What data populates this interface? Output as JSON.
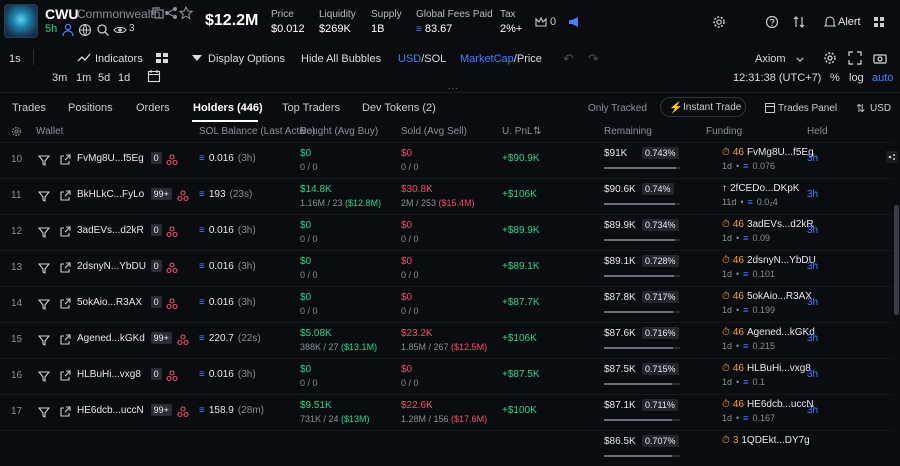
{
  "header": {
    "ticker": "CWU",
    "token_name": "Commonwealth",
    "age": "5h",
    "holders_count": "3",
    "market_cap": "$12.2M",
    "stats": [
      {
        "label": "Price",
        "value": "$0.012"
      },
      {
        "label": "Liquidity",
        "value": "$269K"
      },
      {
        "label": "Supply",
        "value": "1B"
      },
      {
        "label": "Global Fees Paid",
        "value": "83.67"
      },
      {
        "label": "Tax",
        "value": "2%+"
      }
    ],
    "bell_count": "0",
    "alert_label": "Alert"
  },
  "toolbar": {
    "interval_1s": "1s",
    "indicators": "Indicators",
    "display_options": "Display Options",
    "hide_bubbles": "Hide All Bubbles",
    "usd": "USD",
    "sol": "/SOL",
    "marketcap": "MarketCap",
    "price": "/Price",
    "axiom": "Axiom",
    "intervals": [
      "3m",
      "1m",
      "5d",
      "1d"
    ],
    "clock": "12:31:38 (UTC+7)",
    "percent": "%",
    "log": "log",
    "auto": "auto"
  },
  "tabs": {
    "trades": "Trades",
    "positions": "Positions",
    "orders": "Orders",
    "holders": "Holders (446)",
    "top_traders": "Top Traders",
    "dev_tokens": "Dev Tokens (2)",
    "only_tracked": "Only Tracked",
    "instant_trade": "Instant Trade",
    "trades_panel": "Trades Panel",
    "currency": "USD"
  },
  "columns": {
    "wallet": "Wallet",
    "sol_balance": "SOL Balance (Last Active)",
    "bought": "Bought (Avg Buy)",
    "sold": "Sold (Avg Sell)",
    "upnl": "U. PnL",
    "remaining": "Remaining",
    "funding": "Funding",
    "held": "Held"
  },
  "rows": [
    {
      "idx": "10",
      "wallet": "FvMg8U...f5Eg",
      "badge": "0",
      "sol": "0.016",
      "sol_time": "(3h)",
      "bought": "$0",
      "bought_sub": "0 / 0",
      "bought_avg": "",
      "sold": "$0",
      "sold_sub": "0 / 0",
      "sold_avg": "",
      "pnl": "+$90.9K",
      "rem": "$91K",
      "pct": "0.743%",
      "fund_name": "FvMg8U...f5Eg",
      "fund_num": "46",
      "fund_age": "1d",
      "fund_amt": "0.076",
      "held": "3h",
      "fund_type": "self",
      "sol_icon": "sol"
    },
    {
      "idx": "11",
      "wallet": "BkHLkC...FyLo",
      "badge": "99+",
      "sol": "193",
      "sol_time": "(23s)",
      "bought": "$14.8K",
      "bought_sub": "1.16M / 23",
      "bought_avg": "($12.8M)",
      "sold": "$30.8K",
      "sold_sub": "2M / 253",
      "sold_avg": "($15.4M)",
      "pnl": "+$106K",
      "rem": "$90.6K",
      "pct": "0.74%",
      "fund_name": "2fCEDo...DKpK",
      "fund_num": "",
      "fund_age": "11d",
      "fund_amt": "0.0₂4",
      "held": "3h",
      "fund_type": "other",
      "sol_icon": "sol"
    },
    {
      "idx": "12",
      "wallet": "3adEVs...d2kR",
      "badge": "0",
      "sol": "0.016",
      "sol_time": "(3h)",
      "bought": "$0",
      "bought_sub": "0 / 0",
      "bought_avg": "",
      "sold": "$0",
      "sold_sub": "0 / 0",
      "sold_avg": "",
      "pnl": "+$89.9K",
      "rem": "$89.9K",
      "pct": "0.734%",
      "fund_name": "3adEVs...d2kR",
      "fund_num": "46",
      "fund_age": "1d",
      "fund_amt": "0.09",
      "held": "3h",
      "fund_type": "self",
      "sol_icon": "sol"
    },
    {
      "idx": "13",
      "wallet": "2dsnyN...YbDU",
      "badge": "0",
      "sol": "0.016",
      "sol_time": "(3h)",
      "bought": "$0",
      "bought_sub": "0 / 0",
      "bought_avg": "",
      "sold": "$0",
      "sold_sub": "0 / 0",
      "sold_avg": "",
      "pnl": "+$89.1K",
      "rem": "$89.1K",
      "pct": "0.728%",
      "fund_name": "2dsnyN...YbDU",
      "fund_num": "46",
      "fund_age": "1d",
      "fund_amt": "0.101",
      "held": "3h",
      "fund_type": "self",
      "sol_icon": "sol"
    },
    {
      "idx": "14",
      "wallet": "5okAio...R3AX",
      "badge": "0",
      "sol": "0.016",
      "sol_time": "(3h)",
      "bought": "$0",
      "bought_sub": "0 / 0",
      "bought_avg": "",
      "sold": "$0",
      "sold_sub": "0 / 0",
      "sold_avg": "",
      "pnl": "+$87.7K",
      "rem": "$87.8K",
      "pct": "0.717%",
      "fund_name": "5okAio...R3AX",
      "fund_num": "46",
      "fund_age": "1d",
      "fund_amt": "0.199",
      "held": "3h",
      "fund_type": "self",
      "sol_icon": "sol"
    },
    {
      "idx": "15",
      "wallet": "Agened...kGKd",
      "badge": "99+",
      "sol": "220.7",
      "sol_time": "(22s)",
      "bought": "$5.08K",
      "bought_sub": "388K / 27",
      "bought_avg": "($13.1M)",
      "sold": "$23.2K",
      "sold_sub": "1.85M / 267",
      "sold_avg": "($12.5M)",
      "pnl": "+$106K",
      "rem": "$87.6K",
      "pct": "0.716%",
      "fund_name": "Agened...kGKd",
      "fund_num": "46",
      "fund_age": "1d",
      "fund_amt": "0.215",
      "held": "3h",
      "fund_type": "self",
      "sol_icon": "sol"
    },
    {
      "idx": "16",
      "wallet": "HLBuHi...vxg8",
      "badge": "0",
      "sol": "0.016",
      "sol_time": "(3h)",
      "bought": "$0",
      "bought_sub": "0 / 0",
      "bought_avg": "",
      "sold": "$0",
      "sold_sub": "0 / 0",
      "sold_avg": "",
      "pnl": "+$87.5K",
      "rem": "$87.5K",
      "pct": "0.715%",
      "fund_name": "HLBuHi...vxg8",
      "fund_num": "46",
      "fund_age": "1d",
      "fund_amt": "0.1",
      "held": "3h",
      "fund_type": "self",
      "sol_icon": "sol"
    },
    {
      "idx": "17",
      "wallet": "HE6dcb...uccN",
      "badge": "99+",
      "sol": "158.9",
      "sol_time": "(28m)",
      "bought": "$9.51K",
      "bought_sub": "731K / 24",
      "bought_avg": "($13M)",
      "sold": "$22.6K",
      "sold_sub": "1.28M / 156",
      "sold_avg": "($17.6M)",
      "pnl": "+$100K",
      "rem": "$87.1K",
      "pct": "0.711%",
      "fund_name": "HE6dcb...uccN",
      "fund_num": "46",
      "fund_age": "1d",
      "fund_amt": "0.167",
      "held": "3h",
      "fund_type": "self",
      "sol_icon": "sol"
    },
    {
      "idx": "",
      "wallet": "",
      "badge": "",
      "sol": "",
      "sol_time": "",
      "bought": "",
      "bought_sub": "",
      "bought_avg": "",
      "sold": "",
      "sold_sub": "",
      "sold_avg": "",
      "pnl": "",
      "rem": "$86.5K",
      "pct": "0.707%",
      "fund_name": "1QDEkt...DY7g",
      "fund_num": "3",
      "fund_age": "",
      "fund_amt": "",
      "held": "",
      "fund_type": "self",
      "sol_icon": ""
    }
  ],
  "remaining_fraction": [
    0.95,
    0.94,
    0.93,
    0.92,
    0.91,
    0.91,
    0.9,
    0.9,
    0.89
  ],
  "colors": {
    "green": "#2ed48a",
    "red": "#f0506e",
    "blue": "#4a7dff",
    "orange": "#f0a53a"
  }
}
